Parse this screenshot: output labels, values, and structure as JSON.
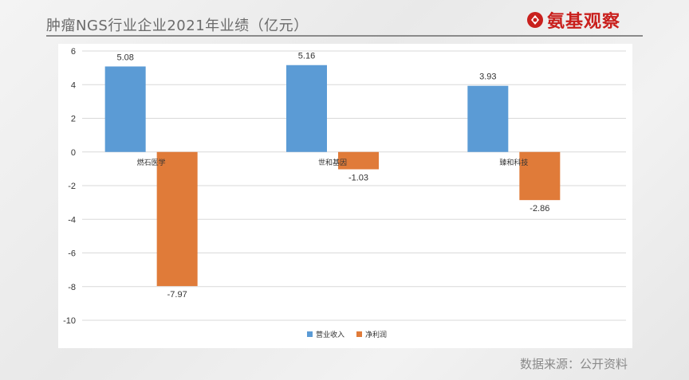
{
  "header": {
    "title": "肿瘤NGS行业企业2021年业绩（亿元）",
    "logo_text": "氨基观察"
  },
  "source_note": "数据来源：公开资料",
  "colors": {
    "revenue": "#5b9bd5",
    "profit": "#e07b39",
    "gridline": "#d9d9d9",
    "logo": "#c9201d"
  },
  "chart_data": {
    "type": "bar",
    "title": "",
    "xlabel": "",
    "ylabel": "",
    "categories": [
      "燃石医学",
      "世和基因",
      "臻和科技"
    ],
    "series": [
      {
        "name": "营业收入",
        "values": [
          5.08,
          5.16,
          3.93
        ]
      },
      {
        "name": "净利润",
        "values": [
          -7.97,
          -1.03,
          -2.86
        ]
      }
    ],
    "ylim": [
      -10,
      6
    ],
    "yticks": [
      6,
      4,
      2,
      0,
      -2,
      -4,
      -6,
      -8,
      -10
    ],
    "grid": true,
    "legend_position": "bottom-center"
  }
}
